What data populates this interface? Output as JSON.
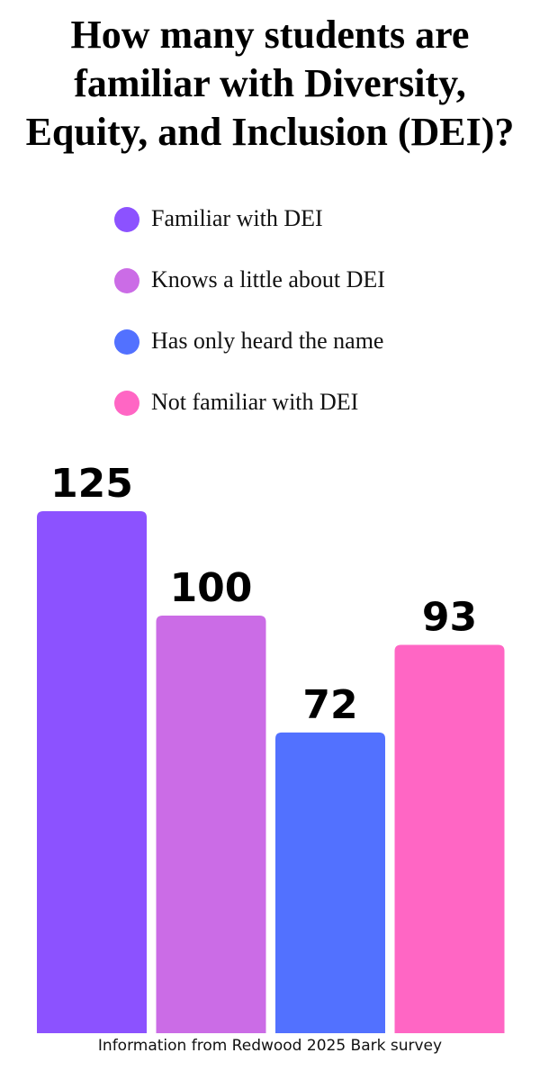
{
  "title_lines": [
    "How many students are",
    "familiar with Diversity,",
    "Equity, and Inclusion (DEI)?"
  ],
  "footer": "Information from Redwood 2025 Bark survey",
  "chart_data": {
    "type": "bar",
    "title": "How many students are familiar with Diversity, Equity, and Inclusion (DEI)?",
    "categories": [
      "Familiar with DEI",
      "Knows a little about DEI",
      "Has only heard the name",
      "Not familiar with DEI"
    ],
    "values": [
      125,
      100,
      72,
      93
    ],
    "colors": [
      "#8c52ff",
      "#cb6ce6",
      "#5271ff",
      "#ff66c4"
    ],
    "legend_position": "top",
    "grid": false,
    "xlabel": "",
    "ylabel": ""
  }
}
